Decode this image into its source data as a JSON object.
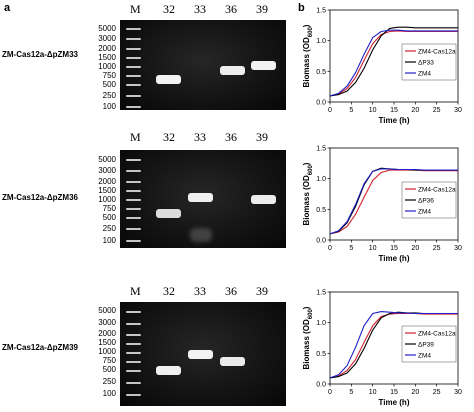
{
  "panel_a_letter": "a",
  "panel_b_letter": "b",
  "ladder_label": "M",
  "lane_labels": [
    "32",
    "33",
    "36",
    "39"
  ],
  "ladder_sizes": [
    "5000",
    "3000",
    "2000",
    "1500",
    "1000",
    "750",
    "500",
    "250",
    "100"
  ],
  "gels": [
    {
      "row_label": "ZM-Cas12a-ΔpZM33",
      "bands": [
        {
          "lane": "32",
          "size_bp": 600
        },
        {
          "lane": "36",
          "size_bp": 900
        },
        {
          "lane": "39",
          "size_bp": 1050
        }
      ]
    },
    {
      "row_label": "ZM-Cas12a-ΔpZM36",
      "bands": [
        {
          "lane": "32",
          "size_bp": 700
        },
        {
          "lane": "33",
          "size_bp": 1400
        },
        {
          "lane": "39",
          "size_bp": 1300
        }
      ]
    },
    {
      "row_label": "ZM-Cas12a-ΔpZM39",
      "bands": [
        {
          "lane": "32",
          "size_bp": 600
        },
        {
          "lane": "33",
          "size_bp": 1100
        },
        {
          "lane": "36",
          "size_bp": 850
        }
      ]
    }
  ],
  "colors": {
    "red": "#d22030",
    "black": "#000000",
    "blue": "#2020c8"
  },
  "chart_data": [
    {
      "type": "line",
      "xlabel": "Time (h)",
      "ylabel_main": "Biomass (OD",
      "ylabel_sub": "600",
      "ylabel_end": ")",
      "xlim": [
        0,
        30
      ],
      "ylim": [
        0.0,
        1.5
      ],
      "xticks": [
        "0",
        "5",
        "10",
        "15",
        "20",
        "25",
        "30"
      ],
      "yticks": [
        "0.0",
        "0.5",
        "1.0",
        "1.5"
      ],
      "legend": "right",
      "series": [
        {
          "name": "ZM4-Cas12a",
          "color": "#d22030",
          "x": [
            0,
            2,
            4,
            6,
            8,
            10,
            12,
            14,
            16,
            18,
            20,
            22,
            24,
            26,
            28,
            30
          ],
          "y": [
            0.1,
            0.13,
            0.22,
            0.4,
            0.68,
            0.95,
            1.1,
            1.15,
            1.16,
            1.15,
            1.15,
            1.15,
            1.15,
            1.15,
            1.15,
            1.15
          ]
        },
        {
          "name": "ΔP33",
          "color": "#000000",
          "x": [
            0,
            2,
            4,
            6,
            8,
            10,
            12,
            14,
            16,
            18,
            20,
            22,
            24,
            26,
            28,
            30
          ],
          "y": [
            0.1,
            0.12,
            0.18,
            0.32,
            0.55,
            0.85,
            1.08,
            1.2,
            1.22,
            1.22,
            1.21,
            1.21,
            1.21,
            1.21,
            1.21,
            1.21
          ]
        },
        {
          "name": "ZM4",
          "color": "#2020c8",
          "x": [
            0,
            2,
            4,
            6,
            8,
            10,
            12,
            14,
            16,
            18,
            20,
            22,
            24,
            26,
            28,
            30
          ],
          "y": [
            0.1,
            0.14,
            0.26,
            0.48,
            0.78,
            1.05,
            1.15,
            1.17,
            1.17,
            1.16,
            1.16,
            1.16,
            1.16,
            1.16,
            1.16,
            1.16
          ]
        }
      ]
    },
    {
      "type": "line",
      "xlabel": "Time (h)",
      "ylabel_main": "Biomass (OD",
      "ylabel_sub": "600",
      "ylabel_end": ")",
      "xlim": [
        0,
        30
      ],
      "ylim": [
        0.0,
        1.5
      ],
      "xticks": [
        "0",
        "5",
        "10",
        "15",
        "20",
        "25",
        "30"
      ],
      "yticks": [
        "0.0",
        "0.5",
        "1.0",
        "1.5"
      ],
      "legend": "right",
      "series": [
        {
          "name": "ZM4-Cas12a",
          "color": "#d22030",
          "x": [
            0,
            2,
            4,
            6,
            8,
            10,
            12,
            14,
            16,
            18,
            20,
            22,
            24,
            26,
            28,
            30
          ],
          "y": [
            0.1,
            0.13,
            0.22,
            0.42,
            0.7,
            0.97,
            1.1,
            1.14,
            1.14,
            1.14,
            1.14,
            1.13,
            1.13,
            1.13,
            1.13,
            1.13
          ]
        },
        {
          "name": "ΔP36",
          "color": "#000000",
          "x": [
            0,
            2,
            4,
            6,
            8,
            10,
            12,
            14,
            16,
            18,
            20,
            22,
            24,
            26,
            28,
            30
          ],
          "y": [
            0.1,
            0.14,
            0.28,
            0.55,
            0.9,
            1.12,
            1.17,
            1.16,
            1.15,
            1.15,
            1.14,
            1.14,
            1.14,
            1.14,
            1.14,
            1.14
          ]
        },
        {
          "name": "ZM4",
          "color": "#2020c8",
          "x": [
            0,
            2,
            4,
            6,
            8,
            10,
            12,
            14,
            16,
            18,
            20,
            22,
            24,
            26,
            28,
            30
          ],
          "y": [
            0.1,
            0.15,
            0.3,
            0.58,
            0.92,
            1.12,
            1.16,
            1.16,
            1.15,
            1.15,
            1.15,
            1.14,
            1.14,
            1.14,
            1.14,
            1.14
          ]
        }
      ]
    },
    {
      "type": "line",
      "xlabel": "Time (h)",
      "ylabel_main": "Biomass (OD",
      "ylabel_sub": "600",
      "ylabel_end": ")",
      "xlim": [
        0,
        30
      ],
      "ylim": [
        0.0,
        1.5
      ],
      "xticks": [
        "0",
        "5",
        "10",
        "15",
        "20",
        "25",
        "30"
      ],
      "yticks": [
        "0.0",
        "0.5",
        "1.0",
        "1.5"
      ],
      "legend": "right",
      "series": [
        {
          "name": "ZM4-Cas12a",
          "color": "#d22030",
          "x": [
            0,
            2,
            4,
            6,
            8,
            10,
            12,
            14,
            16,
            18,
            20,
            22,
            24,
            26,
            28,
            30
          ],
          "y": [
            0.1,
            0.13,
            0.22,
            0.4,
            0.68,
            0.95,
            1.1,
            1.14,
            1.15,
            1.15,
            1.15,
            1.14,
            1.14,
            1.14,
            1.14,
            1.14
          ]
        },
        {
          "name": "ΔP39",
          "color": "#000000",
          "x": [
            0,
            2,
            4,
            6,
            8,
            10,
            12,
            14,
            16,
            18,
            20,
            22,
            24,
            26,
            28,
            30
          ],
          "y": [
            0.1,
            0.12,
            0.18,
            0.33,
            0.58,
            0.88,
            1.08,
            1.15,
            1.17,
            1.16,
            1.16,
            1.15,
            1.15,
            1.15,
            1.15,
            1.15
          ]
        },
        {
          "name": "ZM4",
          "color": "#2020c8",
          "x": [
            0,
            2,
            4,
            6,
            8,
            10,
            12,
            14,
            16,
            18,
            20,
            22,
            24,
            26,
            28,
            30
          ],
          "y": [
            0.1,
            0.15,
            0.3,
            0.6,
            0.95,
            1.15,
            1.18,
            1.17,
            1.16,
            1.16,
            1.15,
            1.15,
            1.15,
            1.15,
            1.15,
            1.15
          ]
        }
      ]
    }
  ]
}
